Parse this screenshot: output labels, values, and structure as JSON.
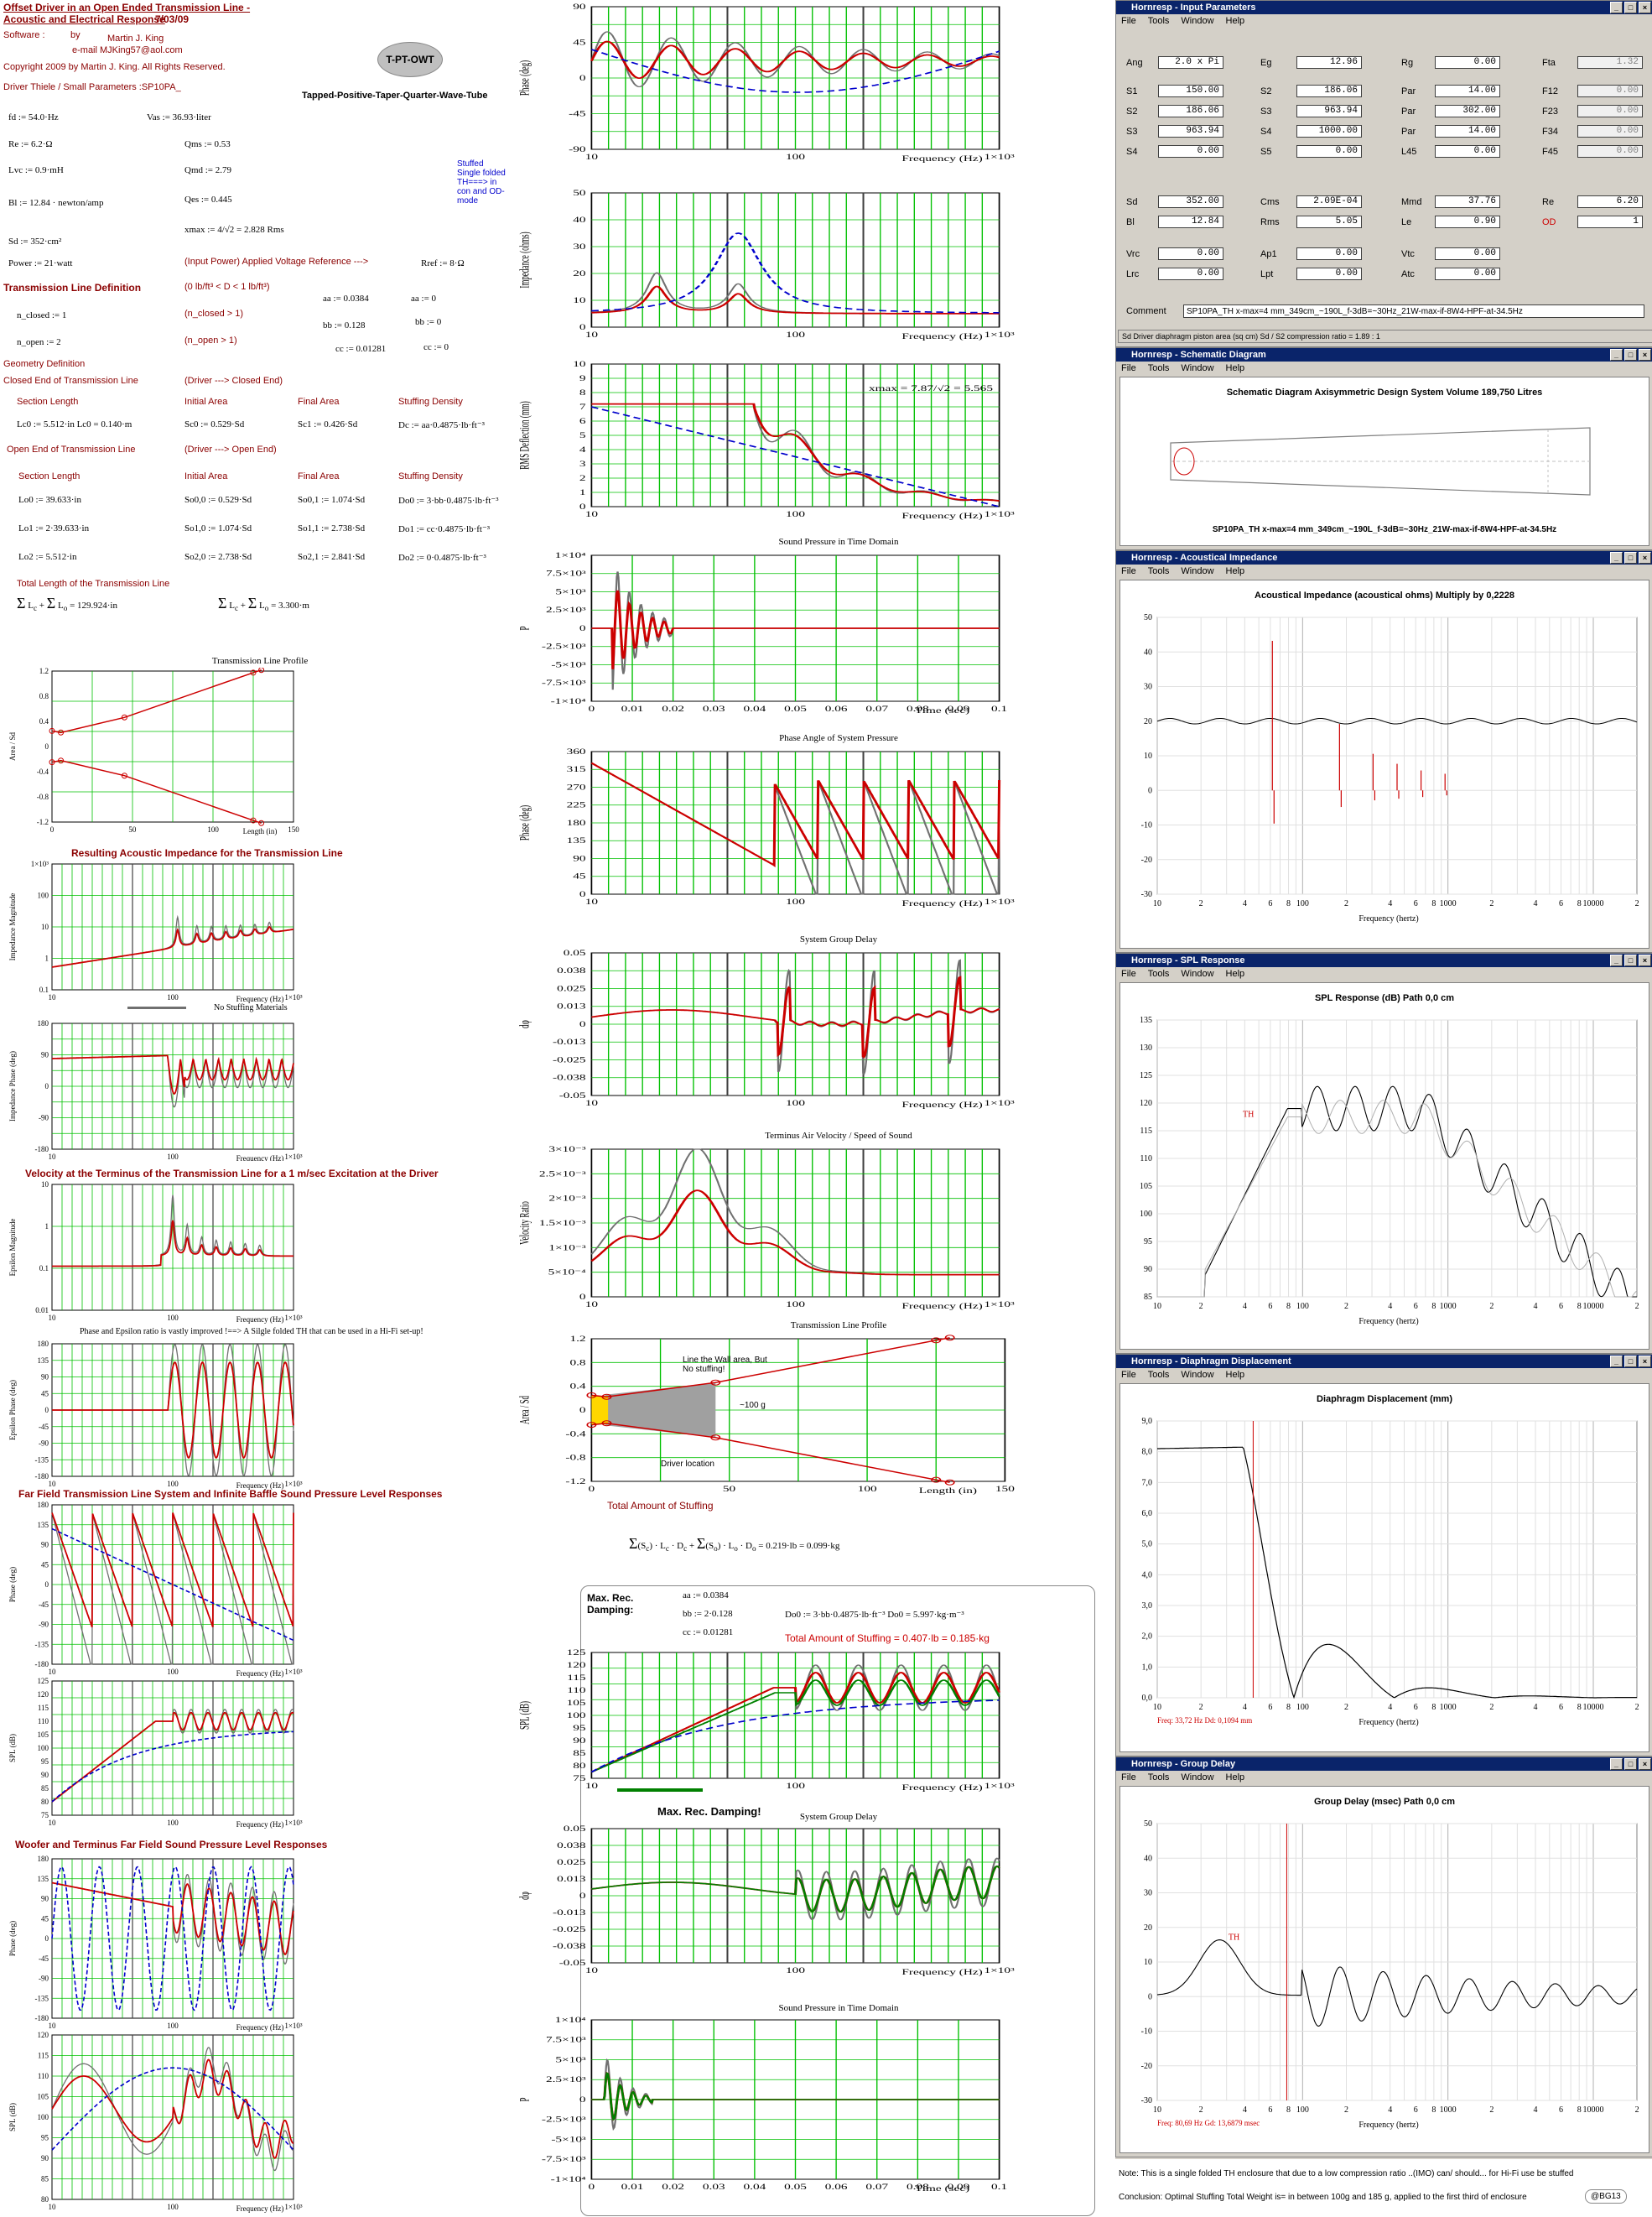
{
  "header": {
    "title1": "Offset Driver in an Open Ended Transmission Line -",
    "title2": "Acoustic and Electrical Response",
    "date": "7/03/09",
    "software": "Software :",
    "by": "by",
    "author": "Martin J. King",
    "email": "e-mail  MJKing57@aol.com",
    "copyright": "Copyright 2009 by Martin J. King. All Rights Reserved.",
    "driver": "Driver Thiele / Small Parameters :SP10PA_",
    "logo": "T-PT-OWT",
    "logo_caption": "Tapped-Positive-Taper-Quarter-Wave-Tube",
    "note": "Stuffed Single folded TH===> in con and OD-mode"
  },
  "params": {
    "fd": "fd := 54.0·Hz",
    "vas": "Vas := 36.93·liter",
    "re": "Re := 6.2·Ω",
    "qms": "Qms := 0.53",
    "lvc": "Lvc := 0.9·mH",
    "qmd": "Qmd := 2.79",
    "bl": "Bl := 12.84 · newton/amp",
    "qes": "Qes := 0.445",
    "sd": "Sd := 352·cm²",
    "xmax": "xmax := 4/√2 = 2.828   Rms",
    "power": "Power := 21·watt",
    "input_power": "(Input Power)   Applied Voltage Reference --->",
    "rref": "Rref := 8·Ω"
  },
  "tl_def": {
    "title": "Transmission Line Definition",
    "range": "(0 lb/ft³ < D < 1 lb/ft³)",
    "aa": "aa := 0.0384",
    "aa0": "aa := 0",
    "bb": "bb := 0.128",
    "bb0": "bb := 0",
    "cc": "cc := 0.01281",
    "cc0": "cc := 0",
    "n_closed": "n_closed := 1",
    "n_closed_note": "(n_closed > 1)",
    "n_open": "n_open := 2",
    "n_open_note": "(n_open > 1)"
  },
  "geometry": {
    "title": "Geometry Definition",
    "closed_title": "Closed End of Transmission Line",
    "closed_arrow": "(Driver ---> Closed End)",
    "section_length": "Section Length",
    "initial_area": "Initial Area",
    "final_area": "Final Area",
    "stuffing": "Stuffing Density",
    "closed_row": [
      "Lc0 := 5.512·in   Lc0 = 0.140·m",
      "Sc0 := 0.529·Sd",
      "Sc1 := 0.426·Sd",
      "Dc := aa·0.4875·lb·ft⁻³"
    ],
    "open_title": "Open End of Transmission Line",
    "open_arrow": "(Driver ---> Open End)",
    "open_rows": [
      [
        "Lo0 := 39.633·in",
        "So0,0 := 0.529·Sd",
        "So0,1 := 1.074·Sd",
        "Do0 := 3·bb·0.4875·lb·ft⁻³"
      ],
      [
        "Lo1 := 2·39.633·in",
        "So1,0 := 1.074·Sd",
        "So1,1 := 2.738·Sd",
        "Do1 := cc·0.4875·lb·ft⁻³"
      ],
      [
        "Lo2 := 5.512·in",
        "So2,0 := 2.738·Sd",
        "So2,1 := 2.841·Sd",
        "Do2 := 0·0.4875·lb·ft⁻³"
      ]
    ],
    "total_title": "Total Length of the Transmission Line",
    "total1": "= 129.924·in",
    "total2": "= 3.300·m"
  },
  "col_a_plots": {
    "profile": "Transmission Line Profile",
    "impedance": "Resulting Acoustic Impedance for the Transmission Line",
    "no_stuffing": "No Stuffing Materials",
    "velocity": "Velocity at the Terminus of the Transmission Line for a 1 m/sec Excitation at the Driver",
    "phase_note": "Phase and Epsilon ratio  is vastly improved !==> A Silgle folded TH that can be used in a Hi-Fi set-up!",
    "farfield": "Far Field Transmission Line System and Infinite Baffle Sound Pressure Level Responses",
    "woofer": "Woofer and Terminus Far Field Sound Pressure Level Responses",
    "freq": "Frequency (Hz)",
    "length": "Length (in)",
    "y_area": "Area / Sd",
    "y_imp": "Impedance Magnitude",
    "y_imp_phase": "Impedance Phase (deg)",
    "y_eps": "Epsilon Magnitude",
    "y_eps_phase": "Epsilon Phase (deg)",
    "y_phase": "Phase (deg)",
    "y_spl": "SPL (dB)"
  },
  "col_b_plots": {
    "impedance_ohms": "Impedance (ohms)",
    "rms_defl": "RMS Deflection (mm)",
    "xmax_label": "xmax = 7.87/√2 = 5.565",
    "sp_time": "Sound Pressure in Time Domain",
    "phase_angle": "Phase Angle of System Pressure",
    "group_delay": "System Group Delay",
    "terminus_vel": "Terminus Air Velocity / Speed of Sound",
    "y_vel": "Velocity Ratio",
    "tl_profile": "Transmission Line Profile",
    "wall_area": "Line the Wall area, But No stuffing!",
    "stuff_100g": "~100 g",
    "driver_loc": "Driver location",
    "total_stuffing": "Total Amount of Stuffing",
    "total_stuff_eq": "= 0.219·lb = 0.099·kg",
    "max_rec": "Max. Rec. Damping:",
    "max_rec2": "Max. Rec. Damping!",
    "aa": "aa := 0.0384",
    "bb": "bb := 2·0.128",
    "cc": "cc := 0.01281",
    "do": "Do0 := 3·bb·0.4875·lb·ft⁻³   Do0 = 5.997·kg·m⁻³",
    "total_stuff2": "Total Amount of Stuffing = 0.407·lb = 0.185·kg",
    "time": "Time (sec)",
    "freq": "Frequency (Hz)",
    "length": "Length (in)"
  },
  "hornresp": {
    "input": {
      "title": "Hornresp - Input Parameters",
      "menu": [
        "File",
        "Tools",
        "Window",
        "Help"
      ],
      "rows": [
        [
          [
            "Ang",
            "2.0 x Pi"
          ],
          [
            "Eg",
            "12.96"
          ],
          [
            "Rg",
            "0.00"
          ],
          [
            "Fta",
            "1.32"
          ]
        ],
        [
          [
            "S1",
            "150.00"
          ],
          [
            "S2",
            "186.06"
          ],
          [
            "Par",
            "14.00"
          ],
          [
            "F12",
            "0.00"
          ]
        ],
        [
          [
            "S2",
            "186.06"
          ],
          [
            "S3",
            "963.94"
          ],
          [
            "Par",
            "302.00"
          ],
          [
            "F23",
            "0.00"
          ]
        ],
        [
          [
            "S3",
            "963.94"
          ],
          [
            "S4",
            "1000.00"
          ],
          [
            "Par",
            "14.00"
          ],
          [
            "F34",
            "0.00"
          ]
        ],
        [
          [
            "S4",
            "0.00"
          ],
          [
            "S5",
            "0.00"
          ],
          [
            "L45",
            "0.00"
          ],
          [
            "F45",
            "0.00"
          ]
        ],
        [
          [
            "Sd",
            "352.00"
          ],
          [
            "Cms",
            "2.09E-04"
          ],
          [
            "Mmd",
            "37.76"
          ],
          [
            "Re",
            "6.20"
          ]
        ],
        [
          [
            "Bl",
            "12.84"
          ],
          [
            "Rms",
            "5.05"
          ],
          [
            "Le",
            "0.90"
          ],
          [
            "OD",
            "1"
          ]
        ],
        [
          [
            "Vrc",
            "0.00"
          ],
          [
            "Ap1",
            "0.00"
          ],
          [
            "Vtc",
            "0.00"
          ]
        ],
        [
          [
            "Lrc",
            "0.00"
          ],
          [
            "Lpt",
            "0.00"
          ],
          [
            "Atc",
            "0.00"
          ]
        ]
      ],
      "comment_label": "Comment",
      "comment": "SP10PA_TH x-max=4 mm_349cm_~190L_f-3dB=~30Hz_21W-max-if-8W4-HPF-at-34.5Hz",
      "status": "Sd  Driver diaphragm piston area (sq cm)   Sd / S2 compression ratio = 1.89 : 1"
    },
    "schematic": {
      "title": "Hornresp - Schematic Diagram",
      "heading": "Schematic Diagram   Axisymmetric Design   System Volume 189,750 Litres",
      "caption": "SP10PA_TH x-max=4 mm_349cm_~190L_f-3dB=~30Hz_21W-max-if-8W4-HPF-at-34.5Hz"
    },
    "acoustic": {
      "title": "Hornresp - Acoustical Impedance",
      "heading": "Acoustical Impedance (acoustical ohms)   Multiply by 0,2228",
      "yticks": [
        "50",
        "40",
        "30",
        "20",
        "10",
        "0",
        "-10",
        "-20",
        "-30"
      ],
      "xlabel": "Frequency (hertz)"
    },
    "spl": {
      "title": "Hornresp - SPL Response",
      "heading": "SPL Response (dB)   Path 0,0 cm",
      "yticks": [
        "135",
        "130",
        "125",
        "120",
        "115",
        "110",
        "105",
        "100",
        "95",
        "90",
        "85"
      ],
      "th": "TH",
      "xlabel": "Frequency (hertz)"
    },
    "displacement": {
      "title": "Hornresp - Diaphragm Displacement",
      "heading": "Diaphragm Displacement (mm)",
      "yticks": [
        "9,0",
        "8,0",
        "7,0",
        "6,0",
        "5,0",
        "4,0",
        "3,0",
        "2,0",
        "1,0",
        "0,0"
      ],
      "readout": "Freq: 33,72 Hz   Dd: 0,1094 mm",
      "xlabel": "Frequency (hertz)"
    },
    "group_delay": {
      "title": "Hornresp - Group Delay",
      "heading": "Group Delay (msec)   Path 0,0 cm",
      "yticks": [
        "50",
        "40",
        "30",
        "20",
        "10",
        "0",
        "-10",
        "-20",
        "-30"
      ],
      "th": "TH",
      "readout": "Freq: 80,69 Hz   Gd: 13,6879 msec",
      "xlabel": "Frequency (hertz)"
    },
    "xticks": [
      "10",
      "2",
      "4",
      "6",
      "8",
      "100",
      "2",
      "4",
      "6",
      "8",
      "1000",
      "2",
      "4",
      "6",
      "8",
      "10000",
      "2"
    ],
    "note": "Note: This is a single folded TH enclosure that due to a low compression ratio ..(IMO) can/ should... for Hi-Fi use be stuffed",
    "conclusion": "Conclusion:  Optimal Stuffing Total Weight is= in between 100g and 185 g, applied to the first third of enclosure",
    "signature": "@BG13"
  },
  "colors": {
    "red": "#cc0000",
    "grid": "#00cc00",
    "blue": "#0000cc",
    "hr_title": "#0a246a"
  }
}
